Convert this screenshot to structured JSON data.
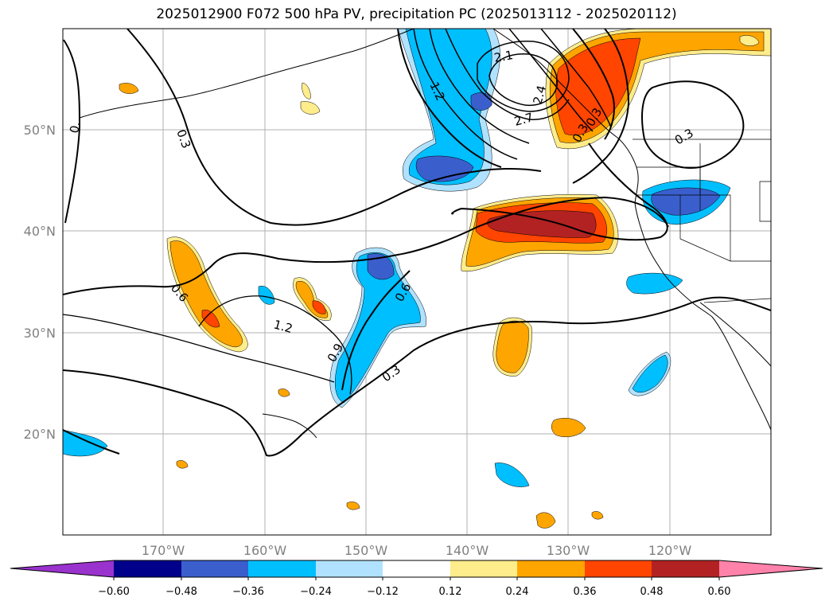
{
  "title": "2025012900 F072 500 hPa PV, precipitation PC (2025013112 - 2025020112)",
  "map": {
    "lon_ticks": [
      "170°W",
      "160°W",
      "150°W",
      "140°W",
      "130°W",
      "120°W"
    ],
    "lat_ticks": [
      "50°N",
      "40°N",
      "30°N",
      "20°N"
    ],
    "contour_labels": [
      "0.3",
      "0.3",
      "0.6",
      "1.2",
      "0.9",
      "0.6",
      "0.3",
      "1.2",
      "2.1",
      "2.7",
      "2.4",
      "0.3",
      "0.3",
      "0."
    ]
  },
  "colorbar": {
    "ticks": [
      "−0.60",
      "−0.48",
      "−0.36",
      "−0.24",
      "−0.12",
      "0.12",
      "0.24",
      "0.36",
      "0.48",
      "0.60"
    ],
    "colors": [
      "#9a32cd",
      "#00008b",
      "#3a5fcd",
      "#00bfff",
      "#b0e2ff",
      "#ffffff",
      "#ffec8b",
      "#ffa500",
      "#ff4500",
      "#b22222",
      "#ff82ab"
    ]
  },
  "colors": {
    "neg_light": "#b0e2ff",
    "neg_cyan": "#00bfff",
    "neg_blue": "#3a5fcd",
    "pos_yellow": "#ffec8b",
    "pos_orange": "#ffa500",
    "pos_redorange": "#ff4500",
    "pos_darkred": "#b22222",
    "pos_pink": "#ff82ab"
  }
}
